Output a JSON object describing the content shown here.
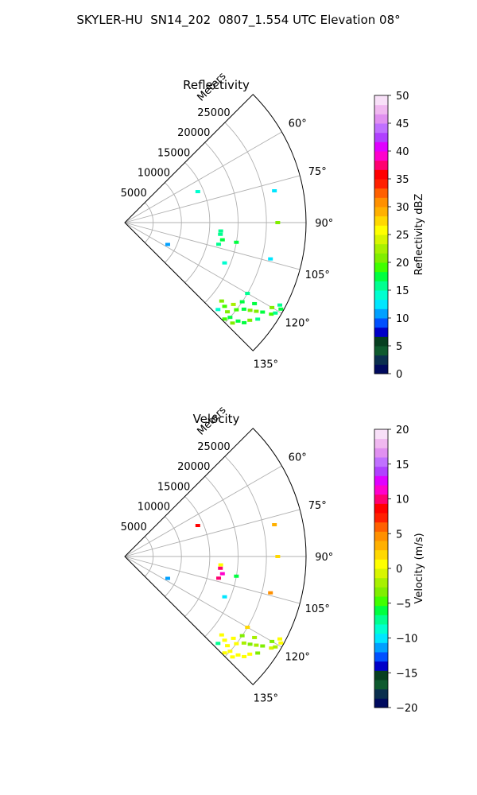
{
  "title": "SKYLER-HU  SN14_202  0807_1.554 UTC Elevation 08°",
  "chart_data": [
    {
      "type": "scatter",
      "subtype": "polar-sector radar PPI",
      "title": "Reflectivity",
      "range_axis_label": "Meters",
      "range_ticks": [
        5000,
        10000,
        15000,
        20000,
        25000
      ],
      "range_max": 32000,
      "azimuth_ticks": [
        "60°",
        "75°",
        "90°",
        "105°",
        "120°",
        "135°"
      ],
      "azimuth_tick_values": [
        60,
        75,
        90,
        105,
        120,
        135
      ],
      "azimuth_range": [
        45,
        135
      ],
      "grid": true,
      "colorbar": {
        "label": "Reflectivity dBZ",
        "min": 0,
        "max": 50,
        "ticks": [
          "0",
          "5",
          "10",
          "15",
          "20",
          "25",
          "30",
          "35",
          "40",
          "45",
          "50"
        ],
        "tick_values": [
          0,
          5,
          10,
          15,
          20,
          25,
          30,
          35,
          40,
          45,
          50
        ],
        "colors": [
          "#000a5e",
          "#0a2f4e",
          "#0e5a2e",
          "#073f20",
          "#0000c8",
          "#0050ff",
          "#00a0ff",
          "#00e6ff",
          "#00ffd0",
          "#00ff90",
          "#00ff40",
          "#40ff00",
          "#80ee00",
          "#a8f000",
          "#d8f500",
          "#ffff00",
          "#ffd800",
          "#ffb000",
          "#ff9000",
          "#ff6000",
          "#ff2000",
          "#ff0000",
          "#ff0070",
          "#ff00cc",
          "#e000ff",
          "#b040ff",
          "#c070ff",
          "#e090f0",
          "#f0b8f0",
          "#f8e0f8"
        ]
      },
      "gates": [
        {
          "az": 129,
          "r": 22000,
          "v": 20
        },
        {
          "az": 130,
          "r": 23000,
          "v": 19
        },
        {
          "az": 131,
          "r": 24000,
          "v": 21
        },
        {
          "az": 132,
          "r": 25000,
          "v": 18
        },
        {
          "az": 133,
          "r": 26000,
          "v": 20
        },
        {
          "az": 131,
          "r": 26500,
          "v": 17
        },
        {
          "az": 128,
          "r": 25000,
          "v": 19
        },
        {
          "az": 127,
          "r": 24000,
          "v": 22
        },
        {
          "az": 126,
          "r": 26000,
          "v": 18
        },
        {
          "az": 125,
          "r": 27000,
          "v": 20
        },
        {
          "az": 124,
          "r": 28000,
          "v": 21
        },
        {
          "az": 123,
          "r": 29000,
          "v": 17
        },
        {
          "az": 122,
          "r": 30500,
          "v": 19
        },
        {
          "az": 121,
          "r": 31000,
          "v": 16
        },
        {
          "az": 120,
          "r": 30000,
          "v": 20
        },
        {
          "az": 119,
          "r": 31500,
          "v": 18
        },
        {
          "az": 118,
          "r": 31000,
          "v": 15
        },
        {
          "az": 124,
          "r": 25000,
          "v": 17
        },
        {
          "az": 130,
          "r": 27500,
          "v": 18
        },
        {
          "az": 128,
          "r": 28000,
          "v": 20
        },
        {
          "az": 126,
          "r": 29000,
          "v": 16
        },
        {
          "az": 122,
          "r": 27000,
          "v": 18
        },
        {
          "az": 120,
          "r": 25000,
          "v": 15
        },
        {
          "az": 112,
          "r": 19000,
          "v": 14
        },
        {
          "az": 103,
          "r": 17000,
          "v": 15
        },
        {
          "az": 100,
          "r": 17500,
          "v": 18
        },
        {
          "az": 97,
          "r": 17000,
          "v": 16
        },
        {
          "az": 95,
          "r": 17000,
          "v": 15
        },
        {
          "az": 100,
          "r": 20000,
          "v": 18
        },
        {
          "az": 90,
          "r": 27000,
          "v": 20
        },
        {
          "az": 78,
          "r": 27000,
          "v": 12
        },
        {
          "az": 104,
          "r": 26500,
          "v": 12
        },
        {
          "az": 117,
          "r": 8500,
          "v": 10
        },
        {
          "az": 67,
          "r": 14000,
          "v": 14
        },
        {
          "az": 133,
          "r": 22500,
          "v": 14
        },
        {
          "az": 134,
          "r": 24500,
          "v": 19
        }
      ]
    },
    {
      "type": "scatter",
      "subtype": "polar-sector radar PPI",
      "title": "Velocity",
      "range_axis_label": "Meters",
      "range_ticks": [
        5000,
        10000,
        15000,
        20000,
        25000
      ],
      "range_max": 32000,
      "azimuth_ticks": [
        "60°",
        "75°",
        "90°",
        "105°",
        "120°",
        "135°"
      ],
      "azimuth_tick_values": [
        60,
        75,
        90,
        105,
        120,
        135
      ],
      "azimuth_range": [
        45,
        135
      ],
      "grid": true,
      "colorbar": {
        "label": "Velocity (m/s)",
        "min": -20,
        "max": 20,
        "ticks": [
          "−20",
          "−15",
          "−10",
          "−5",
          "0",
          "5",
          "10",
          "15",
          "20"
        ],
        "tick_values": [
          -20,
          -15,
          -10,
          -5,
          0,
          5,
          10,
          15,
          20
        ],
        "colors": [
          "#000a5e",
          "#0a2f4e",
          "#0e5a2e",
          "#073f20",
          "#0000c8",
          "#0050ff",
          "#00a0ff",
          "#00e6ff",
          "#00ffd0",
          "#00ff90",
          "#00ff40",
          "#40ff00",
          "#80ee00",
          "#a8f000",
          "#d8f500",
          "#ffff00",
          "#ffd800",
          "#ffb000",
          "#ff9000",
          "#ff6000",
          "#ff2000",
          "#ff0000",
          "#ff0070",
          "#ff00cc",
          "#e000ff",
          "#b040ff",
          "#c070ff",
          "#e090f0",
          "#f0b8f0",
          "#f8e0f8"
        ]
      },
      "gates": [
        {
          "az": 129,
          "r": 22000,
          "v": 0
        },
        {
          "az": 130,
          "r": 23000,
          "v": 1
        },
        {
          "az": 131,
          "r": 24000,
          "v": 0
        },
        {
          "az": 132,
          "r": 25000,
          "v": 1
        },
        {
          "az": 133,
          "r": 26000,
          "v": 0
        },
        {
          "az": 131,
          "r": 26500,
          "v": 1
        },
        {
          "az": 128,
          "r": 25000,
          "v": 0
        },
        {
          "az": 127,
          "r": 24000,
          "v": 1
        },
        {
          "az": 126,
          "r": 26000,
          "v": -2
        },
        {
          "az": 125,
          "r": 27000,
          "v": -3
        },
        {
          "az": 124,
          "r": 28000,
          "v": -2
        },
        {
          "az": 123,
          "r": 29000,
          "v": -3
        },
        {
          "az": 122,
          "r": 30500,
          "v": -1
        },
        {
          "az": 121,
          "r": 31000,
          "v": -2
        },
        {
          "az": 120,
          "r": 30000,
          "v": -3
        },
        {
          "az": 119,
          "r": 31500,
          "v": 0
        },
        {
          "az": 118,
          "r": 31000,
          "v": 1
        },
        {
          "az": 124,
          "r": 25000,
          "v": -4
        },
        {
          "az": 130,
          "r": 27500,
          "v": 0
        },
        {
          "az": 128,
          "r": 28000,
          "v": 1
        },
        {
          "az": 126,
          "r": 29000,
          "v": -3
        },
        {
          "az": 122,
          "r": 27000,
          "v": -2
        },
        {
          "az": 120,
          "r": 25000,
          "v": 2
        },
        {
          "az": 112,
          "r": 19000,
          "v": -10
        },
        {
          "az": 103,
          "r": 17000,
          "v": 10
        },
        {
          "az": 100,
          "r": 17500,
          "v": 11
        },
        {
          "az": 97,
          "r": 17000,
          "v": 10
        },
        {
          "az": 95,
          "r": 17000,
          "v": 1
        },
        {
          "az": 100,
          "r": 20000,
          "v": -6
        },
        {
          "az": 90,
          "r": 27000,
          "v": 2
        },
        {
          "az": 78,
          "r": 27000,
          "v": 3
        },
        {
          "az": 104,
          "r": 26500,
          "v": 4
        },
        {
          "az": 117,
          "r": 8500,
          "v": -12
        },
        {
          "az": 67,
          "r": 14000,
          "v": 9
        },
        {
          "az": 133,
          "r": 22500,
          "v": -8
        },
        {
          "az": 134,
          "r": 24500,
          "v": 0
        }
      ]
    }
  ]
}
